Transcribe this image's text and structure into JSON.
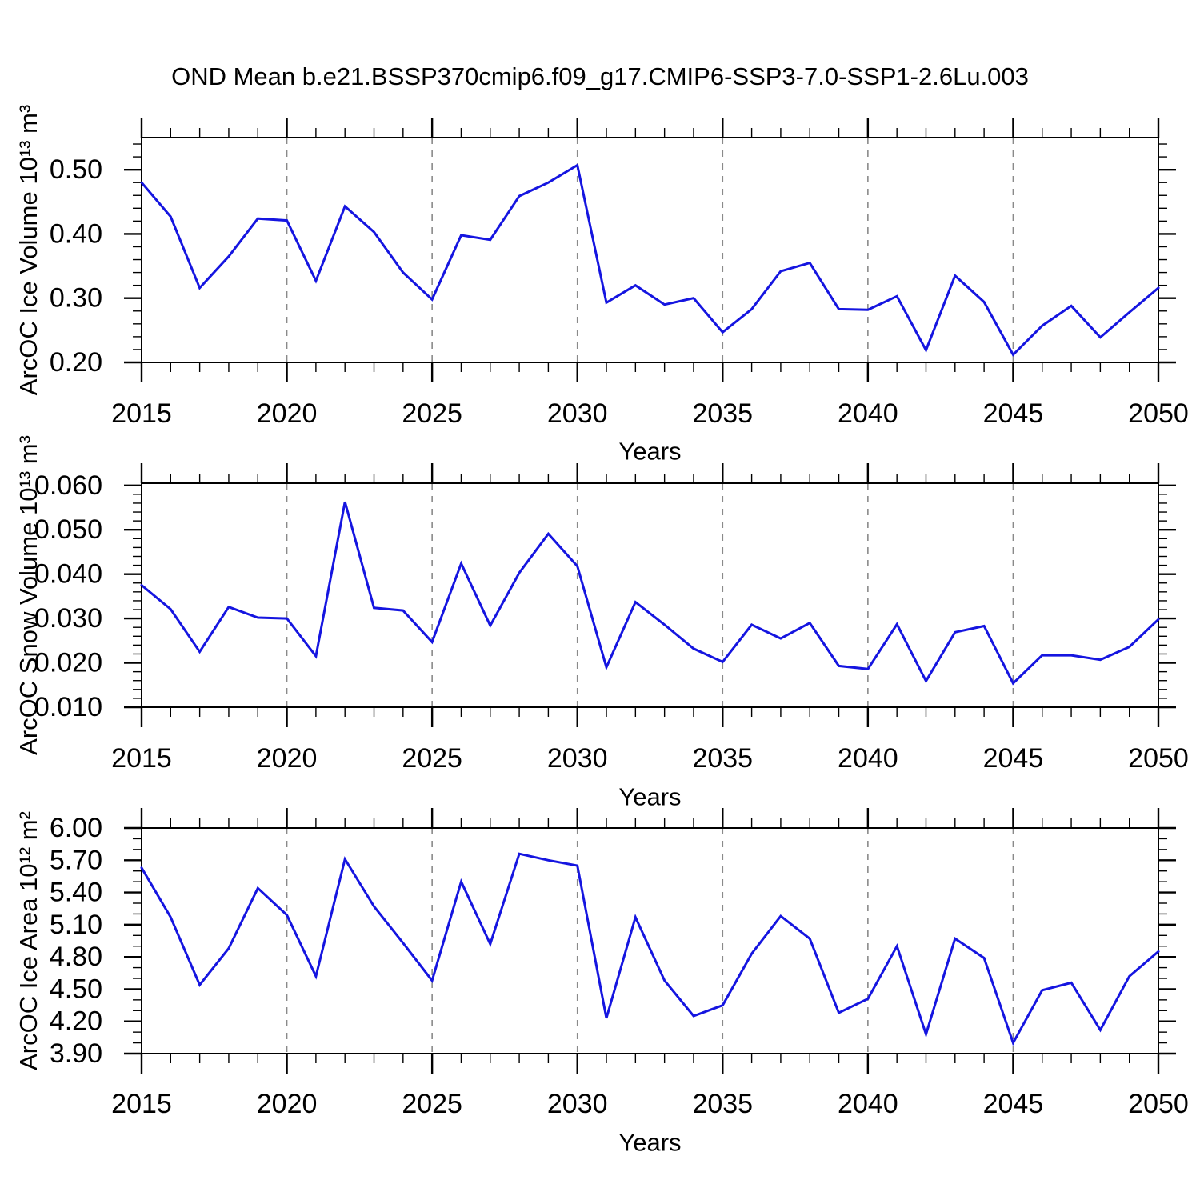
{
  "title": "OND Mean b.e21.BSSP370cmip6.f09_g17.CMIP6-SSP3-7.0-SSP1-2.6Lu.003",
  "colors": {
    "line": "#1515e0",
    "grid": "#8a8a8a",
    "axis": "#000000"
  },
  "chart_data": [
    {
      "type": "line",
      "ylabel": "ArcOC Ice Volume 10¹³ m³",
      "xlabel": "Years",
      "x": [
        2015,
        2016,
        2017,
        2018,
        2019,
        2020,
        2021,
        2022,
        2023,
        2024,
        2025,
        2026,
        2027,
        2028,
        2029,
        2030,
        2031,
        2032,
        2033,
        2034,
        2035,
        2036,
        2037,
        2038,
        2039,
        2040,
        2041,
        2042,
        2043,
        2044,
        2045,
        2046,
        2047,
        2048,
        2049,
        2050
      ],
      "values": [
        0.48,
        0.427,
        0.316,
        0.365,
        0.424,
        0.421,
        0.327,
        0.443,
        0.403,
        0.34,
        0.298,
        0.398,
        0.391,
        0.459,
        0.48,
        0.507,
        0.293,
        0.32,
        0.29,
        0.3,
        0.247,
        0.283,
        0.342,
        0.355,
        0.283,
        0.282,
        0.303,
        0.219,
        0.335,
        0.294,
        0.212,
        0.257,
        0.288,
        0.239,
        0.278,
        0.316
      ],
      "xlim": [
        2015,
        2050
      ],
      "ylim": [
        0.2,
        0.55
      ],
      "xtick_values": [
        2015,
        2020,
        2025,
        2030,
        2035,
        2040,
        2045,
        2050
      ],
      "xtick_labels": [
        "2015",
        "2020",
        "2025",
        "2030",
        "2035",
        "2040",
        "2045",
        "2050"
      ],
      "x_minor_step": 1,
      "ytick_values": [
        0.2,
        0.3,
        0.4,
        0.5
      ],
      "ytick_labels": [
        "0.20",
        "0.30",
        "0.40",
        "0.50"
      ],
      "y_minor_step": 0.02,
      "grid_x": [
        2020,
        2025,
        2030,
        2035,
        2040,
        2045
      ]
    },
    {
      "type": "line",
      "ylabel": "ArcOC Snow Volume 10¹³ m³",
      "xlabel": "Years",
      "x": [
        2015,
        2016,
        2017,
        2018,
        2019,
        2020,
        2021,
        2022,
        2023,
        2024,
        2025,
        2026,
        2027,
        2028,
        2029,
        2030,
        2031,
        2032,
        2033,
        2034,
        2035,
        2036,
        2037,
        2038,
        2039,
        2040,
        2041,
        2042,
        2043,
        2044,
        2045,
        2046,
        2047,
        2048,
        2049,
        2050
      ],
      "values": [
        0.0375,
        0.0321,
        0.0225,
        0.0326,
        0.0302,
        0.03,
        0.0215,
        0.0563,
        0.0324,
        0.0318,
        0.0247,
        0.0424,
        0.0284,
        0.0403,
        0.0491,
        0.0418,
        0.019,
        0.0337,
        0.0286,
        0.0232,
        0.0202,
        0.0286,
        0.0255,
        0.029,
        0.0193,
        0.0186,
        0.0287,
        0.0159,
        0.0269,
        0.0283,
        0.0154,
        0.0217,
        0.0217,
        0.0207,
        0.0236,
        0.0298
      ],
      "xlim": [
        2015,
        2050
      ],
      "ylim": [
        0.01,
        0.0605
      ],
      "xtick_values": [
        2015,
        2020,
        2025,
        2030,
        2035,
        2040,
        2045,
        2050
      ],
      "xtick_labels": [
        "2015",
        "2020",
        "2025",
        "2030",
        "2035",
        "2040",
        "2045",
        "2050"
      ],
      "x_minor_step": 1,
      "ytick_values": [
        0.01,
        0.02,
        0.03,
        0.04,
        0.05,
        0.06
      ],
      "ytick_labels": [
        "0.010",
        "0.020",
        "0.030",
        "0.040",
        "0.050",
        "0.060"
      ],
      "y_minor_step": 0.002,
      "grid_x": [
        2020,
        2025,
        2030,
        2035,
        2040,
        2045
      ]
    },
    {
      "type": "line",
      "ylabel": "ArcOC Ice Area 10¹² m²",
      "xlabel": "Years",
      "x": [
        2015,
        2016,
        2017,
        2018,
        2019,
        2020,
        2021,
        2022,
        2023,
        2024,
        2025,
        2026,
        2027,
        2028,
        2029,
        2030,
        2031,
        2032,
        2033,
        2034,
        2035,
        2036,
        2037,
        2038,
        2039,
        2040,
        2041,
        2042,
        2043,
        2044,
        2045,
        2046,
        2047,
        2048,
        2049,
        2050
      ],
      "values": [
        5.63,
        5.17,
        4.54,
        4.88,
        5.44,
        5.19,
        4.62,
        5.71,
        5.27,
        4.93,
        4.58,
        5.5,
        4.92,
        5.76,
        5.7,
        5.65,
        4.23,
        5.17,
        4.58,
        4.25,
        4.35,
        4.83,
        5.18,
        4.97,
        4.28,
        4.41,
        4.9,
        4.08,
        4.97,
        4.79,
        4.0,
        4.49,
        4.56,
        4.12,
        4.62,
        4.85
      ],
      "xlim": [
        2015,
        2050
      ],
      "ylim": [
        3.9,
        6.0
      ],
      "xtick_values": [
        2015,
        2020,
        2025,
        2030,
        2035,
        2040,
        2045,
        2050
      ],
      "xtick_labels": [
        "2015",
        "2020",
        "2025",
        "2030",
        "2035",
        "2040",
        "2045",
        "2050"
      ],
      "x_minor_step": 1,
      "ytick_values": [
        3.9,
        4.2,
        4.5,
        4.8,
        5.1,
        5.4,
        5.7,
        6.0
      ],
      "ytick_labels": [
        "3.90",
        "4.20",
        "4.50",
        "4.80",
        "5.10",
        "5.40",
        "5.70",
        "6.00"
      ],
      "y_minor_step": 0.1,
      "grid_x": [
        2020,
        2025,
        2030,
        2035,
        2040,
        2045
      ]
    }
  ]
}
